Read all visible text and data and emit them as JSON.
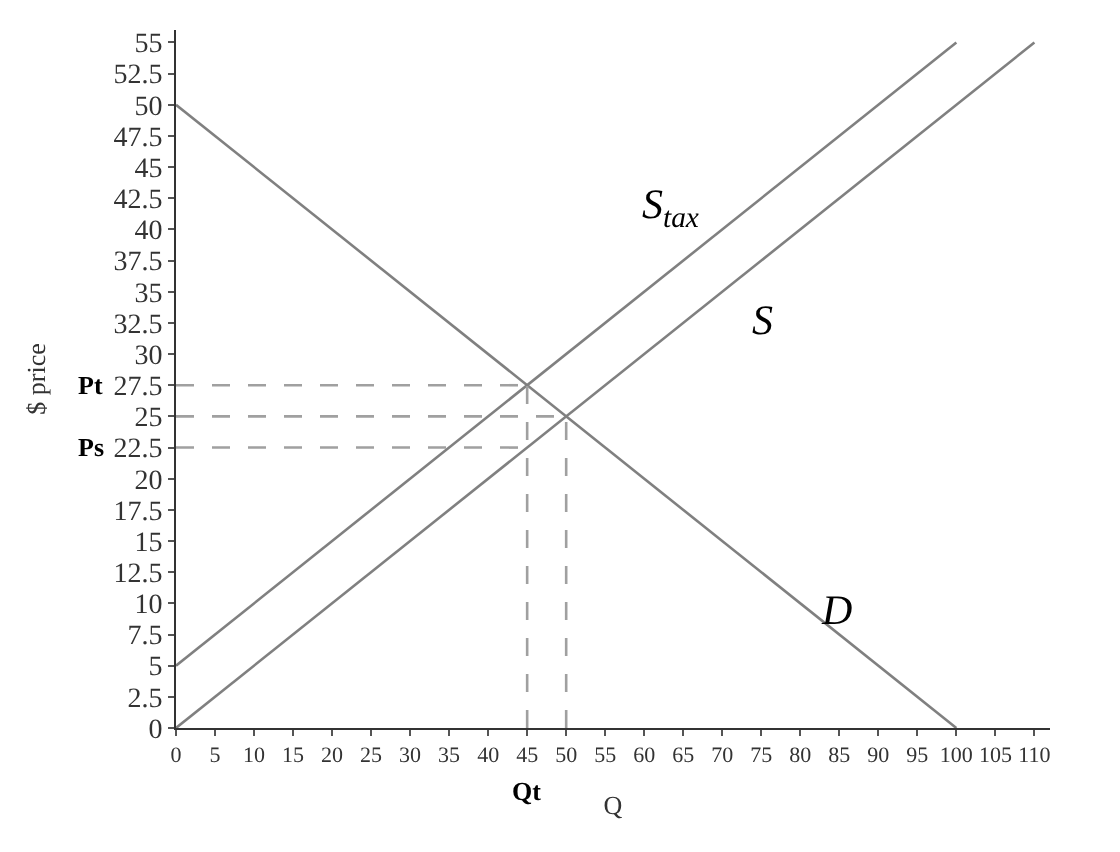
{
  "chart_data": {
    "type": "line",
    "xlabel": "Q",
    "ylabel": "$ price",
    "series": [
      {
        "color": "#808080",
        "x": [
          0,
          100
        ],
        "values": [
          50,
          0
        ]
      },
      {
        "color": "#808080",
        "x": [
          0,
          110
        ],
        "values": [
          0,
          55
        ]
      },
      {
        "color": "#808080",
        "x": [
          0,
          100
        ],
        "values": [
          5,
          55
        ]
      },
      {
        "color": "#a0a0a0",
        "line_style": "dashed",
        "x": [
          0,
          45
        ],
        "values": [
          27.5,
          27.5
        ]
      },
      {
        "color": "#a0a0a0",
        "line_style": "dashed",
        "x": [
          0,
          50
        ],
        "values": [
          25,
          25
        ]
      },
      {
        "color": "#a0a0a0",
        "line_style": "dashed",
        "x": [
          0,
          45
        ],
        "values": [
          22.5,
          22.5
        ]
      },
      {
        "color": "#a0a0a0",
        "line_style": "dashed",
        "x": [
          45,
          45
        ],
        "values": [
          0,
          27.5
        ]
      },
      {
        "color": "#a0a0a0",
        "line_style": "dashed",
        "x": [
          50,
          50
        ],
        "values": [
          0,
          25
        ]
      }
    ],
    "annotations": [
      {
        "text": "S$_{tax}$",
        "x": 71,
        "y": 40.5
      },
      {
        "text": "S",
        "x": 66.6,
        "y": 33.3
      },
      {
        "text": "D",
        "x": 83,
        "y": 8.5
      },
      {
        "text": "Pt",
        "x": 0,
        "y": 27.5
      },
      {
        "text": "Ps",
        "x": 0,
        "y": 22.5
      },
      {
        "text": "Qt",
        "x": 45,
        "y": 0
      }
    ],
    "xlim": [
      0,
      112
    ],
    "ylim": [
      0,
      56
    ],
    "xticks": [
      0,
      5,
      10,
      15,
      20,
      25,
      30,
      35,
      40,
      45,
      50,
      55,
      60,
      65,
      70,
      75,
      80,
      85,
      90,
      95,
      100,
      105,
      110
    ],
    "yticks": [
      0,
      2.5,
      5,
      7.5,
      10,
      12.5,
      15,
      17.5,
      20,
      22.5,
      25,
      27.5,
      30,
      32.5,
      35,
      37.5,
      40,
      42.5,
      45,
      47.5,
      50,
      52.5,
      55
    ],
    "marker": "none",
    "line_style": "solid"
  }
}
